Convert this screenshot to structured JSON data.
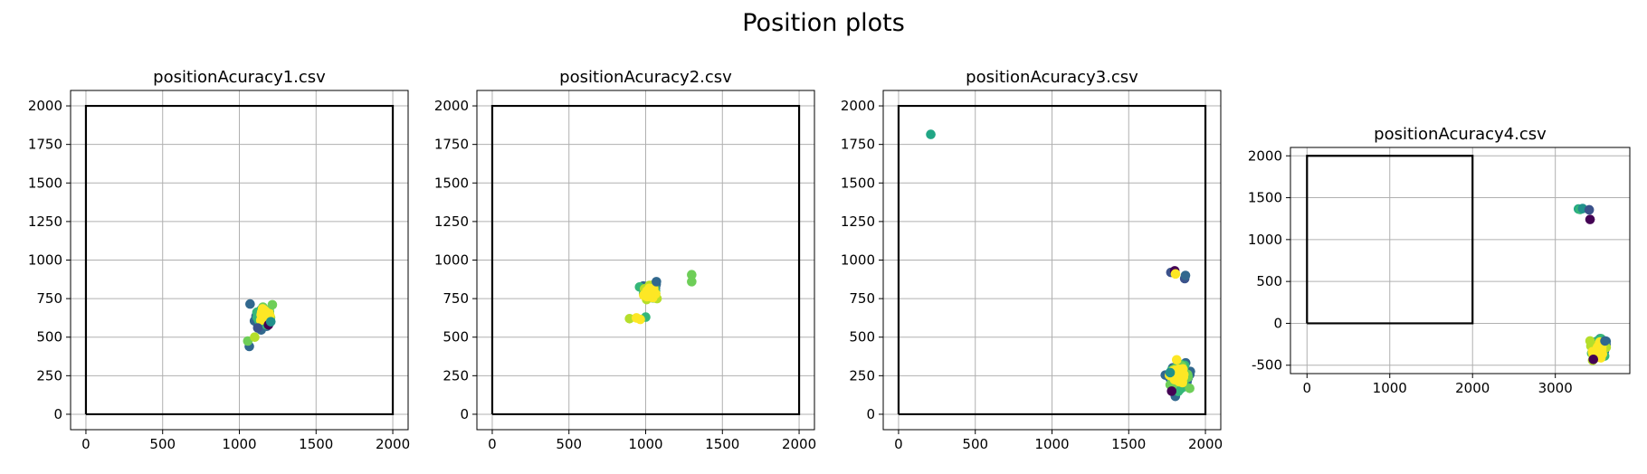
{
  "figure": {
    "title": "Position plots"
  },
  "colors": {
    "frame": "#000000",
    "grid": "#b0b0b0",
    "boundary": "#000000"
  },
  "chart_data": [
    {
      "type": "scatter",
      "title": "positionAcuracy1.csv",
      "xlim": [
        -100,
        2100
      ],
      "ylim": [
        -100,
        2100
      ],
      "xticks": [
        0,
        500,
        1000,
        1500,
        2000
      ],
      "yticks": [
        0,
        250,
        500,
        750,
        1000,
        1250,
        1500,
        1750,
        2000
      ],
      "grid": true,
      "boundary": {
        "x": [
          0,
          2000,
          2000,
          0,
          0
        ],
        "y": [
          0,
          0,
          2000,
          2000,
          0
        ]
      },
      "clusters": [
        {
          "x": 1150,
          "y": 620,
          "sx": 25,
          "sy": 28,
          "n": 30,
          "color": "#31688e"
        },
        {
          "x": 1160,
          "y": 630,
          "sx": 22,
          "sy": 25,
          "n": 30,
          "color": "#35b779"
        },
        {
          "x": 1165,
          "y": 640,
          "sx": 18,
          "sy": 22,
          "n": 30,
          "color": "#6ece58"
        },
        {
          "x": 1170,
          "y": 640,
          "sx": 16,
          "sy": 20,
          "n": 30,
          "color": "#fde725"
        }
      ],
      "points": [
        {
          "x": 1070,
          "y": 715,
          "color": "#31688e"
        },
        {
          "x": 1065,
          "y": 440,
          "color": "#31688e"
        },
        {
          "x": 1055,
          "y": 475,
          "color": "#6ece58"
        },
        {
          "x": 1100,
          "y": 500,
          "color": "#b5de2b"
        },
        {
          "x": 1215,
          "y": 710,
          "color": "#6ece58"
        },
        {
          "x": 1190,
          "y": 580,
          "color": "#440154"
        },
        {
          "x": 1120,
          "y": 560,
          "color": "#3b528b"
        },
        {
          "x": 1205,
          "y": 600,
          "color": "#21918c"
        }
      ]
    },
    {
      "type": "scatter",
      "title": "positionAcuracy2.csv",
      "xlim": [
        -100,
        2100
      ],
      "ylim": [
        -100,
        2100
      ],
      "xticks": [
        0,
        500,
        1000,
        1500,
        2000
      ],
      "yticks": [
        0,
        250,
        500,
        750,
        1000,
        1250,
        1500,
        1750,
        2000
      ],
      "grid": true,
      "boundary": {
        "x": [
          0,
          2000,
          2000,
          0,
          0
        ],
        "y": [
          0,
          0,
          2000,
          2000,
          0
        ]
      },
      "clusters": [
        {
          "x": 1035,
          "y": 805,
          "sx": 22,
          "sy": 25,
          "n": 30,
          "color": "#31688e"
        },
        {
          "x": 1030,
          "y": 800,
          "sx": 20,
          "sy": 22,
          "n": 30,
          "color": "#35b779"
        },
        {
          "x": 1025,
          "y": 790,
          "sx": 18,
          "sy": 20,
          "n": 30,
          "color": "#b5de2b"
        },
        {
          "x": 1020,
          "y": 785,
          "sx": 16,
          "sy": 18,
          "n": 30,
          "color": "#fde725"
        }
      ],
      "points": [
        {
          "x": 1300,
          "y": 905,
          "color": "#6ece58"
        },
        {
          "x": 1300,
          "y": 860,
          "color": "#6ece58"
        },
        {
          "x": 895,
          "y": 620,
          "color": "#b5de2b"
        },
        {
          "x": 1000,
          "y": 630,
          "color": "#35b779"
        },
        {
          "x": 965,
          "y": 615,
          "color": "#fde725"
        },
        {
          "x": 940,
          "y": 625,
          "color": "#fde725"
        },
        {
          "x": 1070,
          "y": 860,
          "color": "#31688e"
        }
      ]
    },
    {
      "type": "scatter",
      "title": "positionAcuracy3.csv",
      "xlim": [
        -100,
        2100
      ],
      "ylim": [
        -100,
        2100
      ],
      "xticks": [
        0,
        500,
        1000,
        1500,
        2000
      ],
      "yticks": [
        0,
        250,
        500,
        750,
        1000,
        1250,
        1500,
        1750,
        2000
      ],
      "grid": true,
      "boundary": {
        "x": [
          0,
          2000,
          2000,
          0,
          0
        ],
        "y": [
          0,
          0,
          2000,
          2000,
          0
        ]
      },
      "clusters": [
        {
          "x": 1840,
          "y": 245,
          "sx": 35,
          "sy": 38,
          "n": 35,
          "color": "#31688e"
        },
        {
          "x": 1835,
          "y": 240,
          "sx": 32,
          "sy": 35,
          "n": 35,
          "color": "#35b779"
        },
        {
          "x": 1830,
          "y": 250,
          "sx": 30,
          "sy": 32,
          "n": 35,
          "color": "#6ece58"
        },
        {
          "x": 1825,
          "y": 255,
          "sx": 28,
          "sy": 30,
          "n": 35,
          "color": "#fde725"
        }
      ],
      "points": [
        {
          "x": 210,
          "y": 1815,
          "color": "#21a685"
        },
        {
          "x": 1775,
          "y": 920,
          "color": "#3b528b"
        },
        {
          "x": 1800,
          "y": 930,
          "color": "#440154"
        },
        {
          "x": 1805,
          "y": 910,
          "color": "#fde725"
        },
        {
          "x": 1865,
          "y": 880,
          "color": "#3b528b"
        },
        {
          "x": 1870,
          "y": 900,
          "color": "#31688e"
        },
        {
          "x": 1780,
          "y": 150,
          "color": "#440154"
        },
        {
          "x": 1770,
          "y": 270,
          "color": "#21918c"
        }
      ]
    },
    {
      "type": "scatter",
      "title": "positionAcuracy4.csv",
      "xlim": [
        -200,
        3900
      ],
      "ylim": [
        -600,
        2100
      ],
      "xticks": [
        0,
        1000,
        2000,
        3000
      ],
      "yticks": [
        -500,
        0,
        500,
        1000,
        1500,
        2000
      ],
      "grid": true,
      "boundary": {
        "x": [
          0,
          2000,
          2000,
          0,
          0
        ],
        "y": [
          0,
          0,
          2000,
          2000,
          0
        ]
      },
      "clusters": [
        {
          "x": 3550,
          "y": -300,
          "sx": 40,
          "sy": 55,
          "n": 30,
          "color": "#31688e"
        },
        {
          "x": 3540,
          "y": -310,
          "sx": 38,
          "sy": 52,
          "n": 30,
          "color": "#35b779"
        },
        {
          "x": 3530,
          "y": -320,
          "sx": 35,
          "sy": 48,
          "n": 30,
          "color": "#b5de2b"
        },
        {
          "x": 3520,
          "y": -330,
          "sx": 32,
          "sy": 45,
          "n": 30,
          "color": "#fde725"
        }
      ],
      "points": [
        {
          "x": 3280,
          "y": 1365,
          "color": "#21a685"
        },
        {
          "x": 3300,
          "y": 1360,
          "color": "#35b779"
        },
        {
          "x": 3330,
          "y": 1370,
          "color": "#21918c"
        },
        {
          "x": 3410,
          "y": 1355,
          "color": "#3b528b"
        },
        {
          "x": 3420,
          "y": 1240,
          "color": "#440154"
        },
        {
          "x": 3420,
          "y": -210,
          "color": "#b5de2b"
        },
        {
          "x": 3600,
          "y": -210,
          "color": "#31688e"
        },
        {
          "x": 3460,
          "y": -430,
          "color": "#440154"
        }
      ]
    }
  ]
}
